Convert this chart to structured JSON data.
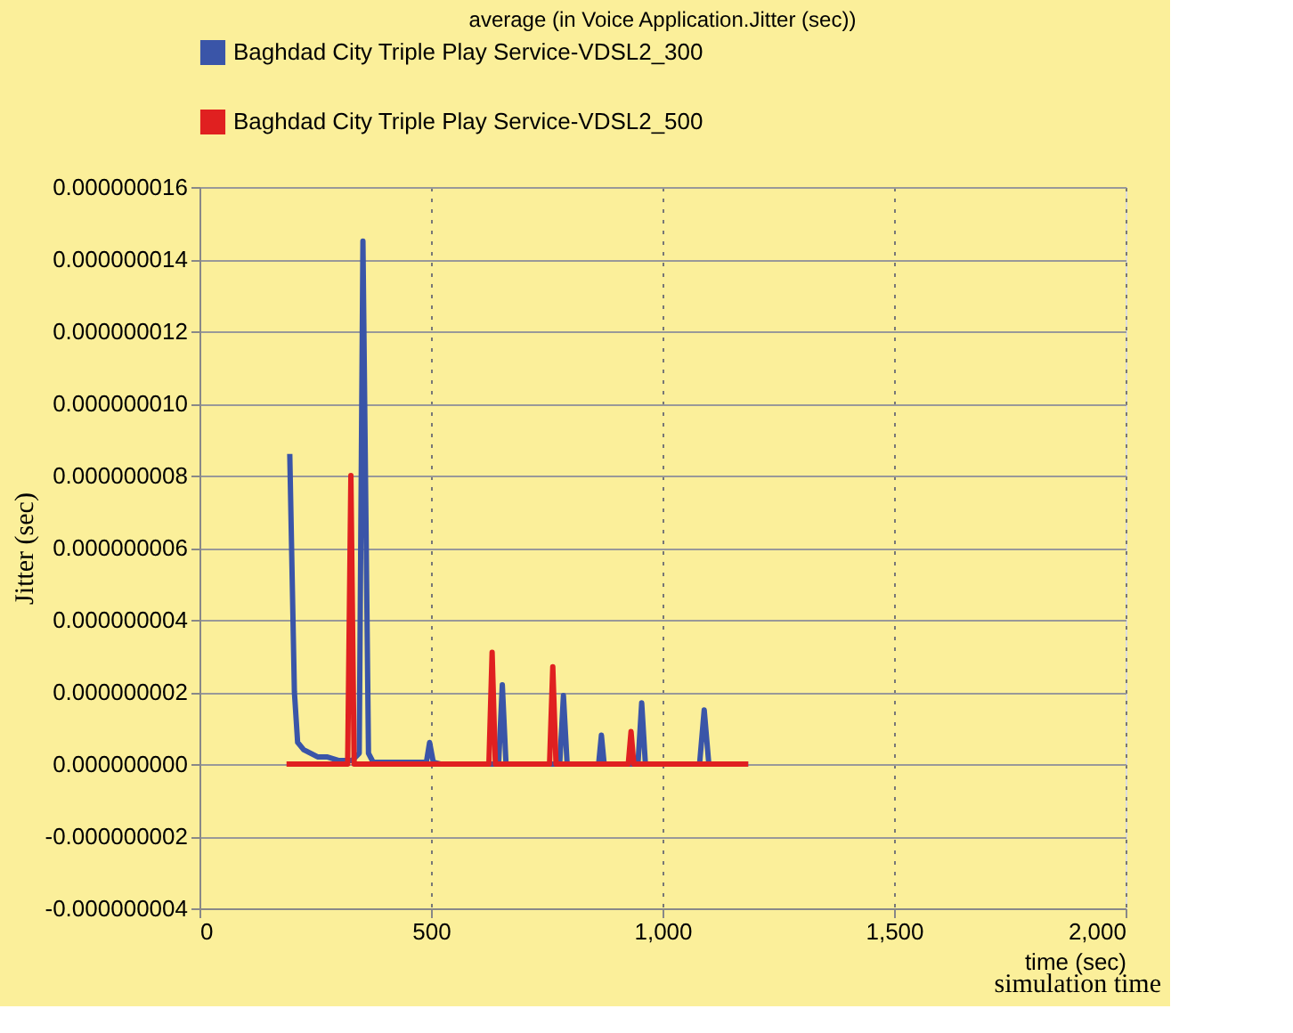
{
  "chart_data": {
    "type": "line",
    "title": "average (in Voice Application.Jitter (sec))",
    "xlabel": "time (sec)",
    "ylabel": "Jitter (sec)",
    "series": [
      {
        "name": "Baghdad City Triple Play Service-VDSL2_300",
        "color": "#3a55a8",
        "x": [
          195,
          205,
          212,
          225,
          240,
          255,
          275,
          300,
          330,
          345,
          353,
          365,
          375,
          400,
          470,
          490,
          497,
          505,
          520,
          600,
          640,
          646,
          654,
          662,
          668,
          700,
          770,
          778,
          786,
          794,
          800,
          855,
          862,
          868,
          874,
          880,
          940,
          947,
          955,
          963,
          970,
          1070,
          1080,
          1090,
          1100,
          1105,
          1185
        ],
        "values": [
          8.6e-09,
          2e-09,
          6e-10,
          4e-10,
          3e-10,
          2e-10,
          2e-10,
          1e-10,
          1e-10,
          3e-10,
          1.45e-08,
          3e-10,
          5e-11,
          5e-11,
          5e-11,
          5e-11,
          6e-10,
          5e-11,
          0.0,
          0.0,
          0.0,
          0.0,
          2.2e-09,
          0.0,
          0.0,
          0.0,
          0.0,
          0.0,
          1.9e-09,
          0.0,
          0.0,
          0.0,
          0.0,
          8e-10,
          0.0,
          0.0,
          0.0,
          0.0,
          1.7e-09,
          0.0,
          0.0,
          0.0,
          0.0,
          1.5e-09,
          0.0,
          0.0,
          0.0
        ]
      },
      {
        "name": "Baghdad City Triple Play Service-VDSL2_500",
        "color": "#e02020",
        "x": [
          188,
          310,
          320,
          327,
          334,
          345,
          615,
          625,
          632,
          639,
          648,
          750,
          756,
          763,
          770,
          778,
          920,
          926,
          932,
          938,
          945,
          1185
        ],
        "values": [
          0.0,
          0.0,
          0.0,
          8e-09,
          0.0,
          0.0,
          0.0,
          0.0,
          3.1e-09,
          0.0,
          0.0,
          0.0,
          0.0,
          2.7e-09,
          0.0,
          0.0,
          0.0,
          0.0,
          9e-10,
          0.0,
          0.0,
          0.0
        ]
      }
    ],
    "xlim": [
      0,
      2000
    ],
    "xticks": [
      0,
      500,
      {
        "value": 1000,
        "label": "1,000"
      },
      {
        "value": 1500,
        "label": "1,500"
      },
      {
        "value": 2000,
        "label": "2,000"
      }
    ],
    "ylim": [
      -4e-09,
      1.6e-08
    ],
    "yticks": [
      {
        "value": -4e-09,
        "label": "-0.000000004"
      },
      {
        "value": -2e-09,
        "label": "-0.000000002"
      },
      {
        "value": 0,
        "label": "0.000000000"
      },
      {
        "value": 2e-09,
        "label": "0.000000002"
      },
      {
        "value": 4e-09,
        "label": "0.000000004"
      },
      {
        "value": 6e-09,
        "label": "0.000000006"
      },
      {
        "value": 8e-09,
        "label": "0.000000008"
      },
      {
        "value": 1e-08,
        "label": "0.000000010"
      },
      {
        "value": 1.2e-08,
        "label": "0.000000012"
      },
      {
        "value": 1.4e-08,
        "label": "0.000000014"
      },
      {
        "value": 1.6e-08,
        "label": "0.000000016"
      }
    ],
    "grid": true,
    "legend": "top",
    "marker": "none",
    "line_style": "solid",
    "annotations": [
      "simulation time"
    ]
  }
}
